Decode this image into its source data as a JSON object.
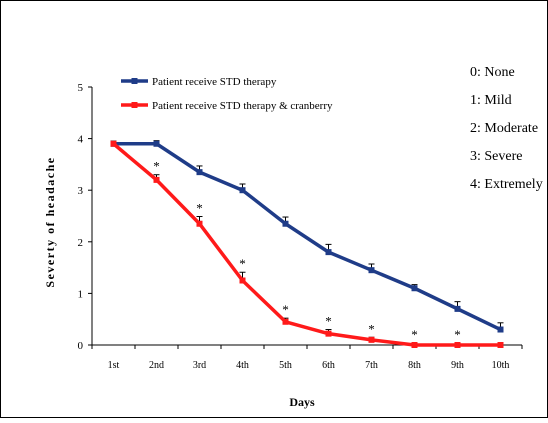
{
  "chart_data": {
    "type": "line",
    "xlabel": "Days",
    "ylabel": "Severty of headache",
    "ylim": [
      0,
      5
    ],
    "yticks": [
      "0",
      "1",
      "2",
      "3",
      "4",
      "5"
    ],
    "categories": [
      "1st",
      "2nd",
      "3rd",
      "4th",
      "5th",
      "6th",
      "7th",
      "8th",
      "9th",
      "10th"
    ],
    "series": [
      {
        "name": "Patient receive STD therapy",
        "color": "#1f3c88",
        "values": [
          3.9,
          3.9,
          3.35,
          3.0,
          2.35,
          1.8,
          1.45,
          1.1,
          0.7,
          0.3
        ],
        "errors": [
          0.05,
          0.06,
          0.12,
          0.12,
          0.13,
          0.15,
          0.12,
          0.07,
          0.14,
          0.13
        ]
      },
      {
        "name": "Patient receive STD therapy & cranberry",
        "color": "#ff1a1a",
        "values": [
          3.9,
          3.2,
          2.35,
          1.25,
          0.45,
          0.22,
          0.1,
          0.0,
          0.0,
          0.0
        ],
        "errors": [
          0.05,
          0.1,
          0.14,
          0.16,
          0.07,
          0.08,
          0.05,
          0.04,
          0.04,
          0.04
        ],
        "significance": [
          "",
          "*",
          "*",
          "*",
          "*",
          "*",
          "*",
          "*",
          "*",
          ""
        ]
      }
    ],
    "legend_position": "top-left",
    "scale_key": [
      "0: None",
      "1: Mild",
      "2: Moderate",
      "3: Severe",
      "4: Extremely"
    ]
  }
}
